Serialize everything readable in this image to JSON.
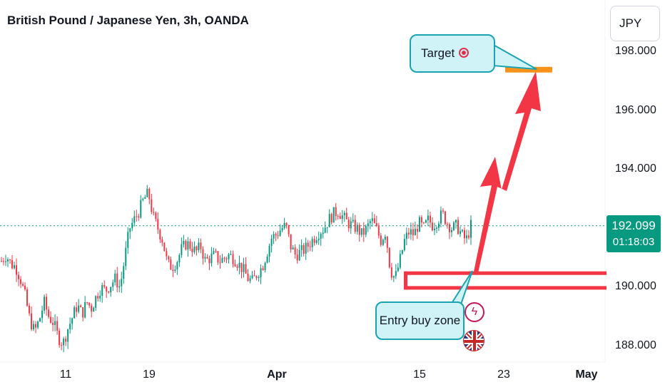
{
  "header": {
    "title": "British Pound / Japanese Yen, 3h, OANDA",
    "currency": "JPY"
  },
  "price_badge": {
    "price": "192.099",
    "countdown": "01:18:03",
    "color": "#089981"
  },
  "annotations": {
    "target_label": "Target",
    "target_icon": "target-icon",
    "entry_label": "Entry buy zone",
    "entry_icon": "lightning-icon",
    "flag_icon": "uk-flag-icon",
    "callout_fill": "#cff3f7",
    "callout_border": "#1aa3b3",
    "arrow_color": "#f23645",
    "target_line_color": "#f7931a",
    "zone_color": "#f23645"
  },
  "chart_data": {
    "type": "candlestick",
    "symbol": "GBPJPY",
    "timeframe": "3h",
    "y_ticks": [
      "198.000",
      "196.000",
      "194.000",
      "190.000",
      "188.000"
    ],
    "y_tick_values": [
      198,
      196,
      194,
      190,
      188
    ],
    "x_ticks": [
      {
        "label": "11",
        "bold": false
      },
      {
        "label": "19",
        "bold": false
      },
      {
        "label": "Apr",
        "bold": true
      },
      {
        "label": "15",
        "bold": false
      },
      {
        "label": "23",
        "bold": false
      },
      {
        "label": "May",
        "bold": true
      }
    ],
    "last_price": 192.099,
    "up_color": "#089981",
    "down_color": "#f23645",
    "target_level": 197.4,
    "entry_zone": [
      190.0,
      190.5
    ],
    "close_path": [
      190.9,
      191.1,
      190.8,
      190.7,
      190.3,
      189.7,
      188.9,
      188.5,
      188.9,
      189.5,
      189.0,
      188.8,
      188.3,
      188.1,
      188.6,
      189.0,
      189.4,
      189.1,
      189.5,
      189.3,
      189.7,
      190.0,
      189.9,
      190.1,
      190.3,
      190.0,
      191.0,
      192.0,
      192.3,
      192.6,
      193.0,
      193.2,
      192.4,
      192.0,
      191.6,
      190.8,
      190.7,
      190.9,
      191.3,
      191.5,
      191.4,
      191.2,
      191.4,
      190.9,
      191.0,
      191.1,
      190.9,
      191.0,
      191.1,
      191.0,
      190.8,
      190.6,
      190.3,
      190.2,
      190.5,
      190.7,
      191.2,
      191.7,
      191.8,
      192.0,
      192.1,
      191.4,
      191.1,
      191.2,
      191.3,
      191.5,
      191.7,
      191.9,
      192.0,
      192.3,
      192.5,
      192.6,
      192.4,
      192.2,
      192.1,
      192.0,
      191.8,
      192.0,
      192.3,
      192.0,
      191.6,
      191.9,
      190.6,
      190.3,
      190.9,
      191.6,
      191.9,
      191.8,
      192.2,
      192.0,
      192.3,
      192.1,
      192.3,
      192.5,
      192.2,
      192.0,
      192.1,
      191.8,
      191.6,
      192.1
    ]
  }
}
